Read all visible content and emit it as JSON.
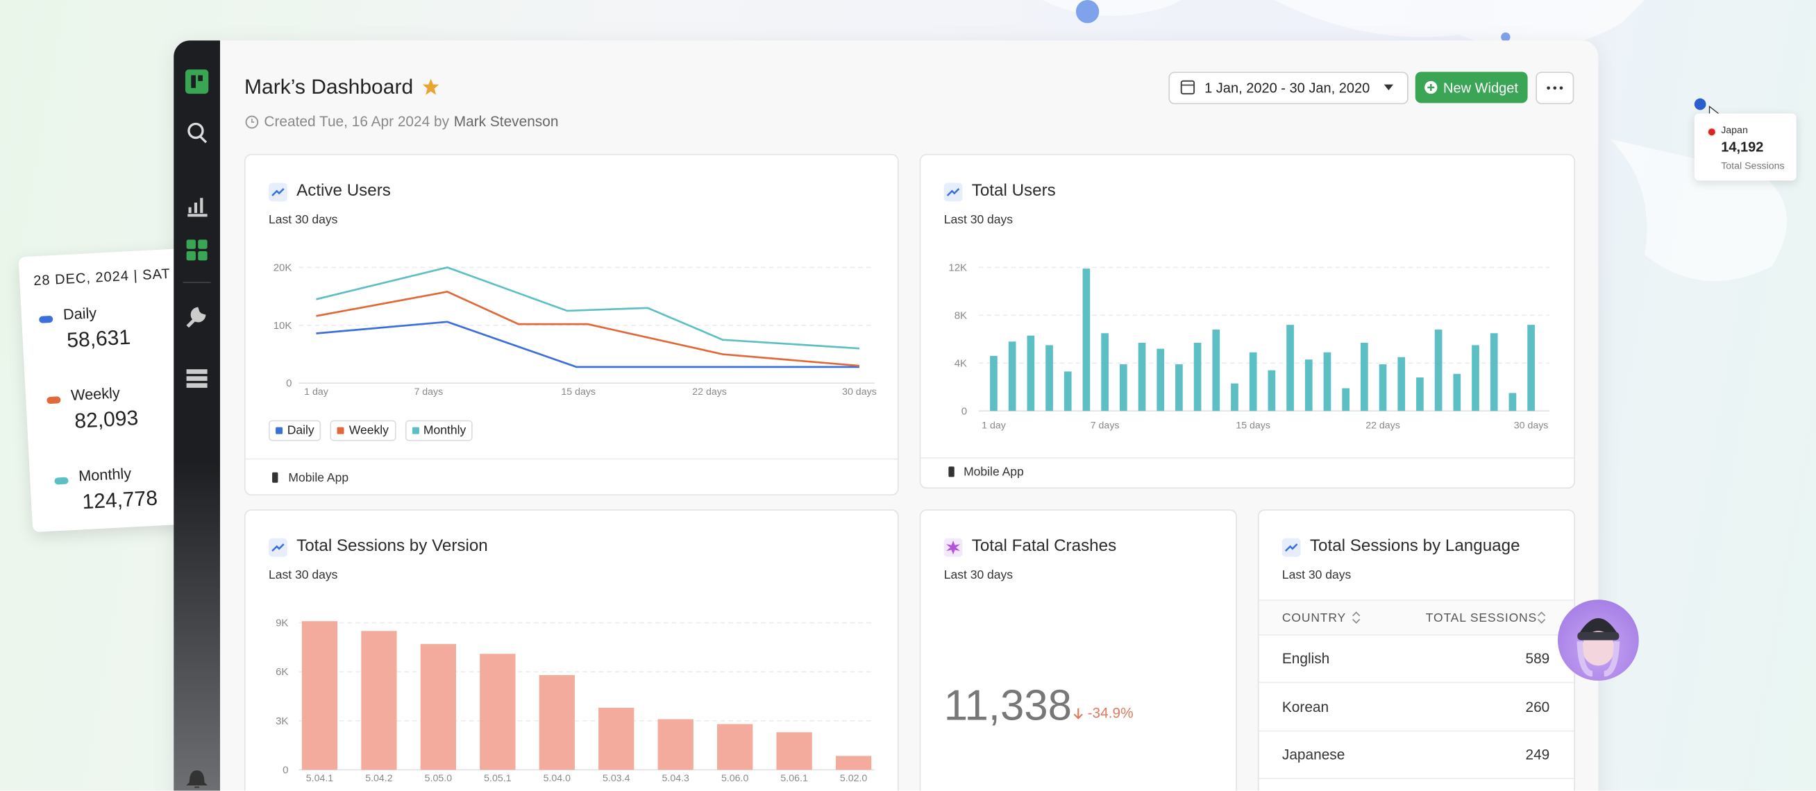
{
  "header": {
    "title": "Mark’s Dashboard",
    "created": "Created Tue, 16 Apr 2024 by",
    "author": "Mark Stevenson",
    "date_range": "1 Jan, 2020 - 30 Jan, 2020",
    "new_widget": "New Widget"
  },
  "widgets": {
    "active_users": {
      "title": "Active Users",
      "subtitle": "Last 30 days",
      "footer": "Mobile App",
      "chart_data": {
        "type": "line",
        "xlim": [
          1,
          30
        ],
        "ylim": [
          0,
          20000
        ],
        "xticks": [
          {
            "value": 1,
            "label": "1 day"
          },
          {
            "value": 7,
            "label": "7 days"
          },
          {
            "value": 15,
            "label": "15 days"
          },
          {
            "value": 22,
            "label": "22 days"
          },
          {
            "value": 30,
            "label": "30 days"
          }
        ],
        "yticks": [
          0,
          {
            "value": 10000,
            "label": "10K"
          },
          {
            "value": 20000,
            "label": "20K"
          }
        ],
        "grid": true,
        "series": [
          {
            "name": "Daily",
            "color": "#3a6fdc",
            "x": [
              1,
              8,
              14.9,
              30
            ],
            "values": [
              8600,
              10600,
              2800,
              2800
            ]
          },
          {
            "name": "Weekly",
            "color": "#e0693a",
            "x": [
              1,
              8,
              11.8,
              15.5,
              22.7,
              30
            ],
            "values": [
              11600,
              15800,
              10200,
              10200,
              5000,
              3000
            ]
          },
          {
            "name": "Monthly",
            "color": "#5bbfc4",
            "x": [
              1,
              8,
              14.4,
              18.7,
              22.7,
              30
            ],
            "values": [
              14500,
              20000,
              12500,
              13000,
              7500,
              6000
            ]
          }
        ]
      }
    },
    "total_users": {
      "title": "Total Users",
      "subtitle": "Last 30 days",
      "footer": "Mobile App",
      "chart_data": {
        "type": "bar",
        "color": "#5bbfc4",
        "ylim": [
          0,
          12000
        ],
        "yticks": [
          0,
          {
            "value": 4000,
            "label": "4K"
          },
          {
            "value": 8000,
            "label": "8K"
          },
          {
            "value": 12000,
            "label": "12K"
          }
        ],
        "grid": true,
        "categories": [
          "1 day",
          null,
          null,
          null,
          null,
          null,
          "7 days",
          null,
          null,
          null,
          null,
          null,
          null,
          null,
          "15 days",
          null,
          null,
          null,
          null,
          null,
          null,
          "22 days",
          null,
          null,
          null,
          null,
          null,
          null,
          null,
          "30 days"
        ],
        "values": [
          4600,
          5800,
          6300,
          5500,
          3300,
          11900,
          6500,
          3900,
          5700,
          5200,
          3900,
          5700,
          6800,
          2300,
          4900,
          3400,
          7200,
          4300,
          4900,
          1900,
          5700,
          3900,
          4500,
          2800,
          6800,
          3100,
          5500,
          6500,
          1500,
          7200
        ]
      }
    },
    "sessions_by_version": {
      "title": "Total Sessions by Version",
      "subtitle": "Last 30 days",
      "chart_data": {
        "type": "bar",
        "color": "#f2ab9d",
        "ylim": [
          0,
          9000
        ],
        "yticks": [
          0,
          {
            "value": 3000,
            "label": "3K"
          },
          {
            "value": 6000,
            "label": "6K"
          },
          {
            "value": 9000,
            "label": "9K"
          }
        ],
        "grid": true,
        "categories": [
          "5.04.1",
          "5.04.2",
          "5.05.0",
          "5.05.1",
          "5.04.0",
          "5.03.4",
          "5.04.3",
          "5.06.0",
          "5.06.1",
          "5.02.0"
        ],
        "values": [
          9100,
          8500,
          7700,
          7100,
          5800,
          3800,
          3100,
          2800,
          2300,
          850
        ]
      }
    },
    "fatal_crashes": {
      "title": "Total Fatal Crashes",
      "subtitle": "Last 30 days",
      "value": "11,338",
      "change": "-34.9%"
    },
    "sessions_by_language": {
      "title": "Total Sessions by Language",
      "subtitle": "Last 30 days",
      "columns": [
        "COUNTRY",
        "TOTAL SESSIONS"
      ],
      "rows": [
        [
          "English",
          589
        ],
        [
          "Korean",
          260
        ],
        [
          "Japanese",
          249
        ]
      ]
    }
  },
  "floating_card": {
    "date": "28 DEC, 2024 | SAT",
    "items": [
      {
        "name": "Daily",
        "value": "58,631"
      },
      {
        "name": "Weekly",
        "value": "82,093"
      },
      {
        "name": "Monthly",
        "value": "124,778"
      }
    ]
  },
  "tooltip": {
    "country": "Japan",
    "value": "14,192",
    "label": "Total Sessions"
  }
}
